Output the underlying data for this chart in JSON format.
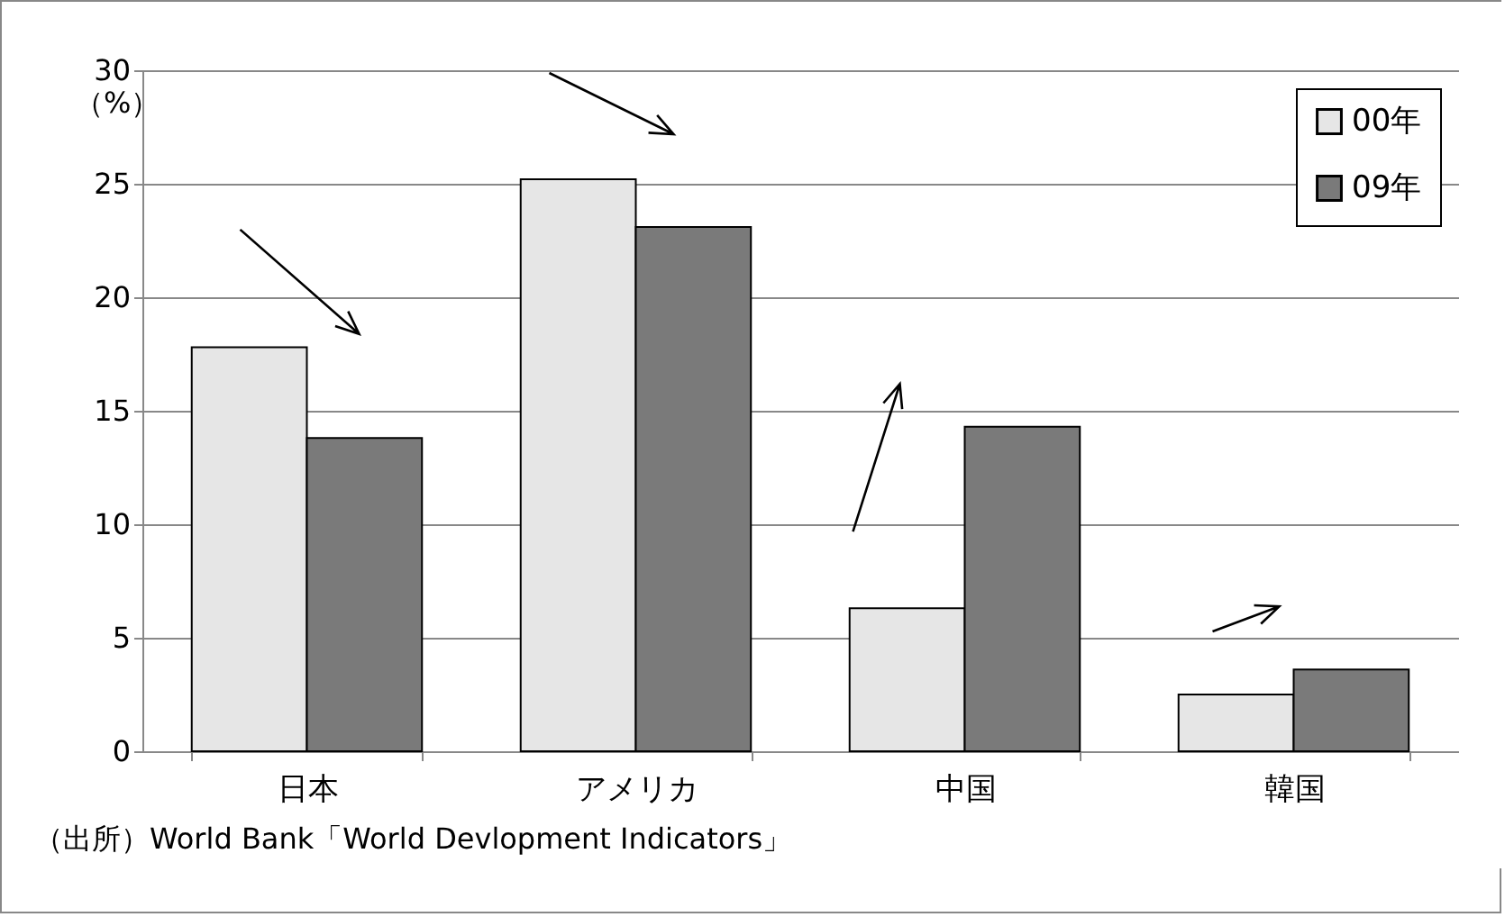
{
  "chart_data": {
    "type": "bar",
    "ylabel": "（%）",
    "categories": [
      "日本",
      "アメリカ",
      "中国",
      "韓国"
    ],
    "series": [
      {
        "name": "00年",
        "color": "#e6e6e6",
        "values": [
          17.8,
          25.2,
          6.3,
          2.5
        ]
      },
      {
        "name": "09年",
        "color": "#7a7a7a",
        "values": [
          13.8,
          23.1,
          14.3,
          3.6
        ]
      }
    ],
    "ylim": [
      0,
      30
    ],
    "yticks": [
      0,
      5,
      10,
      15,
      20,
      25,
      30
    ],
    "grid": "y",
    "legend": "top right",
    "annotations": [
      "（出所）World Bank「World Devlopment Indicators」"
    ]
  }
}
